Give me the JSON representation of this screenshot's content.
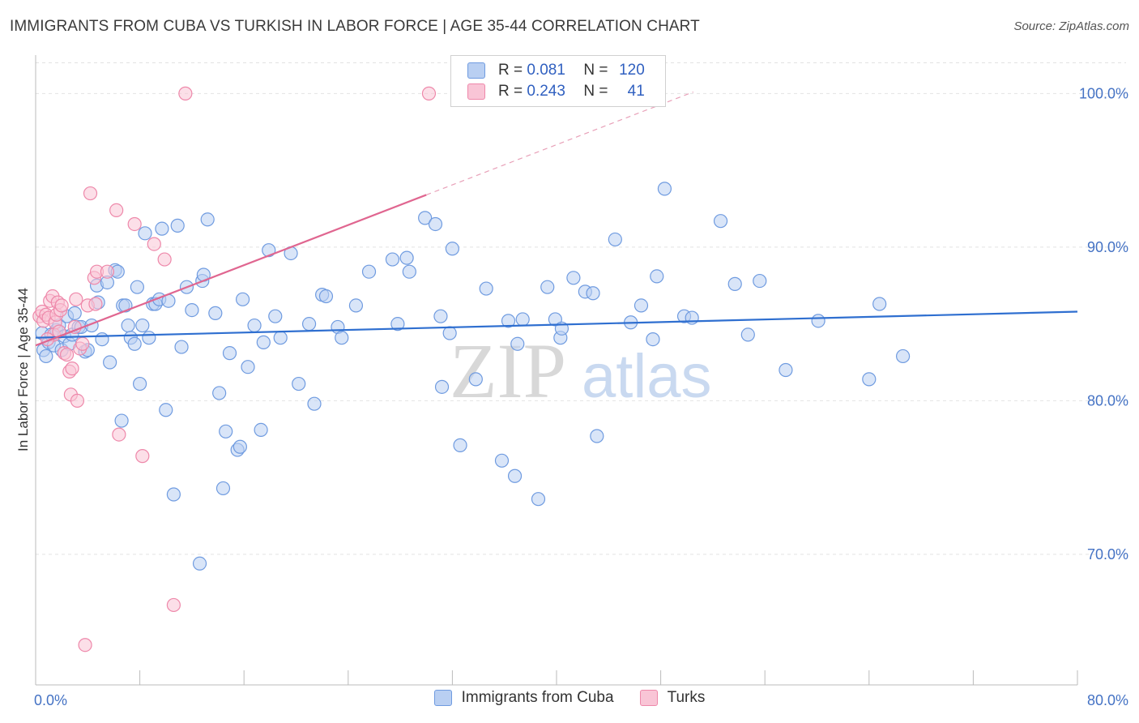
{
  "title": "IMMIGRANTS FROM CUBA VS TURKISH IN LABOR FORCE | AGE 35-44 CORRELATION CHART",
  "source": "Source: ZipAtlas.com",
  "watermark": {
    "zip": "ZIP",
    "atlas": "atlas"
  },
  "legend": {
    "rows": [
      {
        "r_label": "R =",
        "r_value": "0.081",
        "n_label": "N =",
        "n_value": "120"
      },
      {
        "r_label": "R =",
        "r_value": "0.243",
        "n_label": "N =",
        "n_value": "41"
      }
    ]
  },
  "chart_data": {
    "type": "scatter",
    "title": "IMMIGRANTS FROM CUBA VS TURKISH IN LABOR FORCE | AGE 35-44 CORRELATION CHART",
    "xlabel": "",
    "ylabel": "In Labor Force | Age 35-44",
    "xlim": [
      0,
      80
    ],
    "ylim": [
      61.5,
      102.5
    ],
    "x_tick_labels": [
      "0.0%",
      "80.0%"
    ],
    "y_ticks": [
      70,
      80,
      90,
      100
    ],
    "y_tick_labels": [
      "70.0%",
      "80.0%",
      "90.0%",
      "100.0%"
    ],
    "grid": true,
    "legend_placement": "top-center",
    "series": [
      {
        "name": "Immigrants from Cuba",
        "color": "#6f9be0",
        "fill": "#b9cff2",
        "R": 0.081,
        "N": 120,
        "trend": {
          "x": [
            0,
            80
          ],
          "y": [
            84.1,
            85.8
          ]
        },
        "points": [
          [
            0.5,
            84.4
          ],
          [
            0.6,
            83.3
          ],
          [
            0.8,
            82.9
          ],
          [
            1.0,
            83.8
          ],
          [
            1.2,
            84.3
          ],
          [
            1.4,
            83.6
          ],
          [
            1.6,
            84.6
          ],
          [
            1.8,
            84.9
          ],
          [
            2.0,
            83.3
          ],
          [
            2.2,
            84.2
          ],
          [
            2.4,
            85.5
          ],
          [
            2.6,
            83.7
          ],
          [
            2.8,
            84.3
          ],
          [
            3.0,
            85.7
          ],
          [
            3.3,
            84.8
          ],
          [
            3.5,
            84.8
          ],
          [
            3.8,
            83.2
          ],
          [
            4.0,
            83.3
          ],
          [
            4.3,
            84.9
          ],
          [
            4.7,
            87.5
          ],
          [
            4.8,
            86.4
          ],
          [
            5.1,
            84.0
          ],
          [
            5.5,
            87.7
          ],
          [
            5.7,
            82.5
          ],
          [
            6.1,
            88.5
          ],
          [
            6.3,
            88.4
          ],
          [
            6.6,
            78.7
          ],
          [
            6.7,
            86.2
          ],
          [
            6.9,
            86.2
          ],
          [
            7.1,
            84.9
          ],
          [
            7.3,
            84.1
          ],
          [
            7.6,
            83.7
          ],
          [
            7.8,
            87.4
          ],
          [
            8.0,
            81.1
          ],
          [
            8.2,
            84.9
          ],
          [
            8.4,
            90.9
          ],
          [
            8.7,
            84.1
          ],
          [
            9.0,
            86.3
          ],
          [
            9.2,
            86.3
          ],
          [
            9.5,
            86.6
          ],
          [
            9.7,
            91.2
          ],
          [
            10.0,
            79.4
          ],
          [
            10.2,
            86.5
          ],
          [
            10.6,
            73.9
          ],
          [
            10.9,
            91.4
          ],
          [
            11.2,
            83.5
          ],
          [
            11.6,
            87.4
          ],
          [
            12.0,
            85.9
          ],
          [
            12.6,
            69.4
          ],
          [
            12.8,
            87.8
          ],
          [
            12.9,
            88.2
          ],
          [
            13.2,
            91.8
          ],
          [
            13.8,
            85.7
          ],
          [
            14.1,
            80.5
          ],
          [
            14.4,
            74.3
          ],
          [
            14.6,
            78.0
          ],
          [
            14.9,
            83.1
          ],
          [
            15.5,
            76.8
          ],
          [
            15.7,
            77.0
          ],
          [
            15.9,
            86.6
          ],
          [
            16.3,
            82.2
          ],
          [
            16.8,
            84.9
          ],
          [
            17.3,
            78.1
          ],
          [
            17.5,
            83.8
          ],
          [
            17.9,
            89.8
          ],
          [
            18.4,
            85.5
          ],
          [
            18.8,
            84.1
          ],
          [
            19.6,
            89.6
          ],
          [
            20.2,
            81.1
          ],
          [
            21.0,
            85.0
          ],
          [
            21.4,
            79.8
          ],
          [
            22.0,
            86.9
          ],
          [
            22.3,
            86.8
          ],
          [
            23.2,
            84.8
          ],
          [
            23.5,
            84.1
          ],
          [
            24.6,
            86.2
          ],
          [
            25.6,
            88.4
          ],
          [
            27.4,
            89.2
          ],
          [
            27.8,
            85.0
          ],
          [
            28.5,
            89.3
          ],
          [
            28.7,
            88.4
          ],
          [
            29.9,
            91.9
          ],
          [
            30.7,
            91.5
          ],
          [
            31.1,
            85.5
          ],
          [
            31.2,
            80.9
          ],
          [
            31.8,
            84.4
          ],
          [
            32.0,
            89.9
          ],
          [
            32.6,
            77.1
          ],
          [
            33.8,
            81.4
          ],
          [
            34.6,
            87.3
          ],
          [
            35.8,
            76.1
          ],
          [
            36.3,
            85.2
          ],
          [
            36.8,
            75.1
          ],
          [
            37.0,
            83.7
          ],
          [
            37.4,
            85.3
          ],
          [
            38.6,
            73.6
          ],
          [
            39.3,
            87.4
          ],
          [
            39.9,
            85.3
          ],
          [
            40.3,
            84.1
          ],
          [
            40.4,
            84.7
          ],
          [
            41.3,
            88.0
          ],
          [
            42.2,
            87.1
          ],
          [
            42.8,
            87.0
          ],
          [
            43.1,
            77.7
          ],
          [
            44.5,
            90.5
          ],
          [
            45.7,
            85.1
          ],
          [
            46.5,
            86.2
          ],
          [
            47.4,
            84.0
          ],
          [
            47.7,
            88.1
          ],
          [
            48.3,
            93.8
          ],
          [
            49.8,
            85.5
          ],
          [
            50.4,
            85.4
          ],
          [
            52.6,
            91.7
          ],
          [
            53.7,
            87.6
          ],
          [
            54.7,
            84.3
          ],
          [
            55.6,
            87.8
          ],
          [
            57.6,
            82.0
          ],
          [
            60.1,
            85.2
          ],
          [
            64.0,
            81.4
          ],
          [
            64.8,
            86.3
          ],
          [
            66.6,
            82.9
          ]
        ]
      },
      {
        "name": "Turks",
        "color": "#ee88aa",
        "fill": "#f9c5d6",
        "R": 0.243,
        "N": 41,
        "trend": {
          "x": [
            0,
            30
          ],
          "y": [
            83.6,
            93.4
          ]
        },
        "trend_extension": {
          "x": [
            30,
            50.5
          ],
          "y": [
            93.4,
            100.1
          ]
        },
        "points": [
          [
            0.3,
            85.5
          ],
          [
            0.5,
            85.8
          ],
          [
            0.6,
            85.2
          ],
          [
            0.8,
            85.6
          ],
          [
            1.0,
            85.4
          ],
          [
            1.1,
            86.5
          ],
          [
            1.3,
            86.8
          ],
          [
            1.4,
            84.3
          ],
          [
            1.5,
            85.1
          ],
          [
            1.6,
            85.6
          ],
          [
            1.7,
            86.4
          ],
          [
            1.8,
            84.5
          ],
          [
            1.9,
            85.9
          ],
          [
            2.0,
            86.2
          ],
          [
            2.2,
            83.1
          ],
          [
            2.4,
            83.0
          ],
          [
            2.6,
            81.9
          ],
          [
            2.7,
            80.4
          ],
          [
            2.8,
            82.1
          ],
          [
            3.0,
            84.8
          ],
          [
            3.1,
            86.6
          ],
          [
            3.2,
            80.0
          ],
          [
            3.4,
            83.4
          ],
          [
            3.6,
            83.7
          ],
          [
            3.8,
            64.1
          ],
          [
            4.0,
            86.2
          ],
          [
            4.2,
            93.5
          ],
          [
            4.5,
            88.0
          ],
          [
            4.6,
            86.3
          ],
          [
            4.7,
            88.4
          ],
          [
            5.5,
            88.4
          ],
          [
            6.2,
            92.4
          ],
          [
            6.4,
            77.8
          ],
          [
            7.6,
            91.5
          ],
          [
            8.2,
            76.4
          ],
          [
            9.1,
            90.2
          ],
          [
            9.9,
            89.2
          ],
          [
            10.6,
            66.7
          ],
          [
            11.5,
            100.0
          ],
          [
            30.2,
            100.0
          ],
          [
            0.9,
            84.0
          ]
        ]
      }
    ]
  },
  "bottom_legend": [
    "Immigrants from Cuba",
    "Turks"
  ]
}
